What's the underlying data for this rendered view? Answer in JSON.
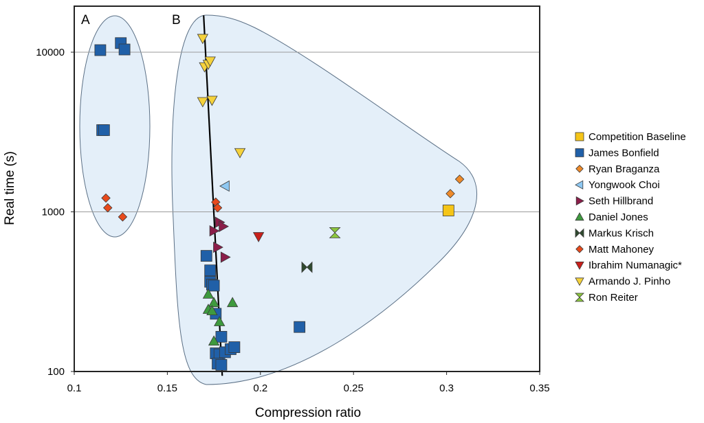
{
  "chart_data": {
    "type": "scatter",
    "xlabel": "Compression ratio",
    "ylabel": "Real time (s)",
    "xlim": [
      0.1,
      0.35
    ],
    "ylim": [
      100,
      18000
    ],
    "yscale": "log",
    "x_ticks": [
      0.1,
      0.15,
      0.2,
      0.25,
      0.3,
      0.35
    ],
    "x_tick_labels": [
      "0.1",
      "0.15",
      "0.2",
      "0.25",
      "0.3",
      "0.35"
    ],
    "y_ticks": [
      100,
      1000,
      10000
    ],
    "y_tick_labels": [
      "100",
      "1000",
      "10000"
    ],
    "gridlines": "horizontal at major y ticks",
    "group_labels": [
      "A",
      "B"
    ],
    "trend_line": {
      "x": [
        0.1695,
        0.1795
      ],
      "y": [
        17000,
        94
      ]
    },
    "legend_position": "right",
    "series": [
      {
        "name": "Competition Baseline",
        "marker": "square",
        "color": "#f5c518",
        "points": [
          [
            0.301,
            1020
          ]
        ]
      },
      {
        "name": "James Bonfield",
        "marker": "square",
        "color": "#2060a8",
        "points": [
          [
            0.114,
            10300
          ],
          [
            0.125,
            11400
          ],
          [
            0.127,
            10400
          ],
          [
            0.115,
            3250
          ],
          [
            0.116,
            3250
          ],
          [
            0.171,
            530
          ],
          [
            0.173,
            430
          ],
          [
            0.173,
            365
          ],
          [
            0.174,
            350
          ],
          [
            0.175,
            345
          ],
          [
            0.176,
            230
          ],
          [
            0.179,
            165
          ],
          [
            0.176,
            130
          ],
          [
            0.178,
            128
          ],
          [
            0.181,
            132
          ],
          [
            0.184,
            138
          ],
          [
            0.186,
            142
          ],
          [
            0.177,
            112
          ],
          [
            0.179,
            110
          ],
          [
            0.221,
            190
          ]
        ]
      },
      {
        "name": "Ryan Braganza",
        "marker": "diamond",
        "color": "#ee8a2a",
        "points": [
          [
            0.302,
            1300
          ],
          [
            0.307,
            1600
          ]
        ]
      },
      {
        "name": "Yongwook Choi",
        "marker": "triangle-left",
        "color": "#8ec8f2",
        "points": [
          [
            0.181,
            1450
          ]
        ]
      },
      {
        "name": "Seth Hillbrand",
        "marker": "triangle-right",
        "color": "#8b1e4a",
        "points": [
          [
            0.178,
            860
          ],
          [
            0.18,
            810
          ],
          [
            0.175,
            760
          ],
          [
            0.177,
            600
          ],
          [
            0.181,
            520
          ]
        ]
      },
      {
        "name": "Daniel Jones",
        "marker": "triangle-up",
        "color": "#3e9a3e",
        "points": [
          [
            0.172,
            305
          ],
          [
            0.175,
            270
          ],
          [
            0.185,
            270
          ],
          [
            0.172,
            245
          ],
          [
            0.174,
            240
          ],
          [
            0.178,
            205
          ],
          [
            0.175,
            155
          ]
        ]
      },
      {
        "name": "Markus Krisch",
        "marker": "bowtie",
        "color": "#2f4a2f",
        "points": [
          [
            0.225,
            450
          ]
        ]
      },
      {
        "name": "Matt Mahoney",
        "marker": "diamond",
        "color": "#e84a1c",
        "points": [
          [
            0.117,
            1220
          ],
          [
            0.118,
            1060
          ],
          [
            0.126,
            930
          ],
          [
            0.176,
            1150
          ],
          [
            0.177,
            1060
          ]
        ]
      },
      {
        "name": "Ibrahim Numanagic*",
        "marker": "triangle-down",
        "color": "#c8201c",
        "points": [
          [
            0.199,
            700
          ]
        ]
      },
      {
        "name": "Armando J. Pinho",
        "marker": "triangle-down",
        "color": "#f5d23c",
        "points": [
          [
            0.169,
            12200
          ],
          [
            0.17,
            8100
          ],
          [
            0.172,
            8400
          ],
          [
            0.173,
            8800
          ],
          [
            0.169,
            4900
          ],
          [
            0.174,
            5000
          ],
          [
            0.189,
            2350
          ]
        ]
      },
      {
        "name": "Ron Reiter",
        "marker": "hourglass",
        "color": "#8cc63f",
        "points": [
          [
            0.24,
            740
          ]
        ]
      }
    ]
  }
}
